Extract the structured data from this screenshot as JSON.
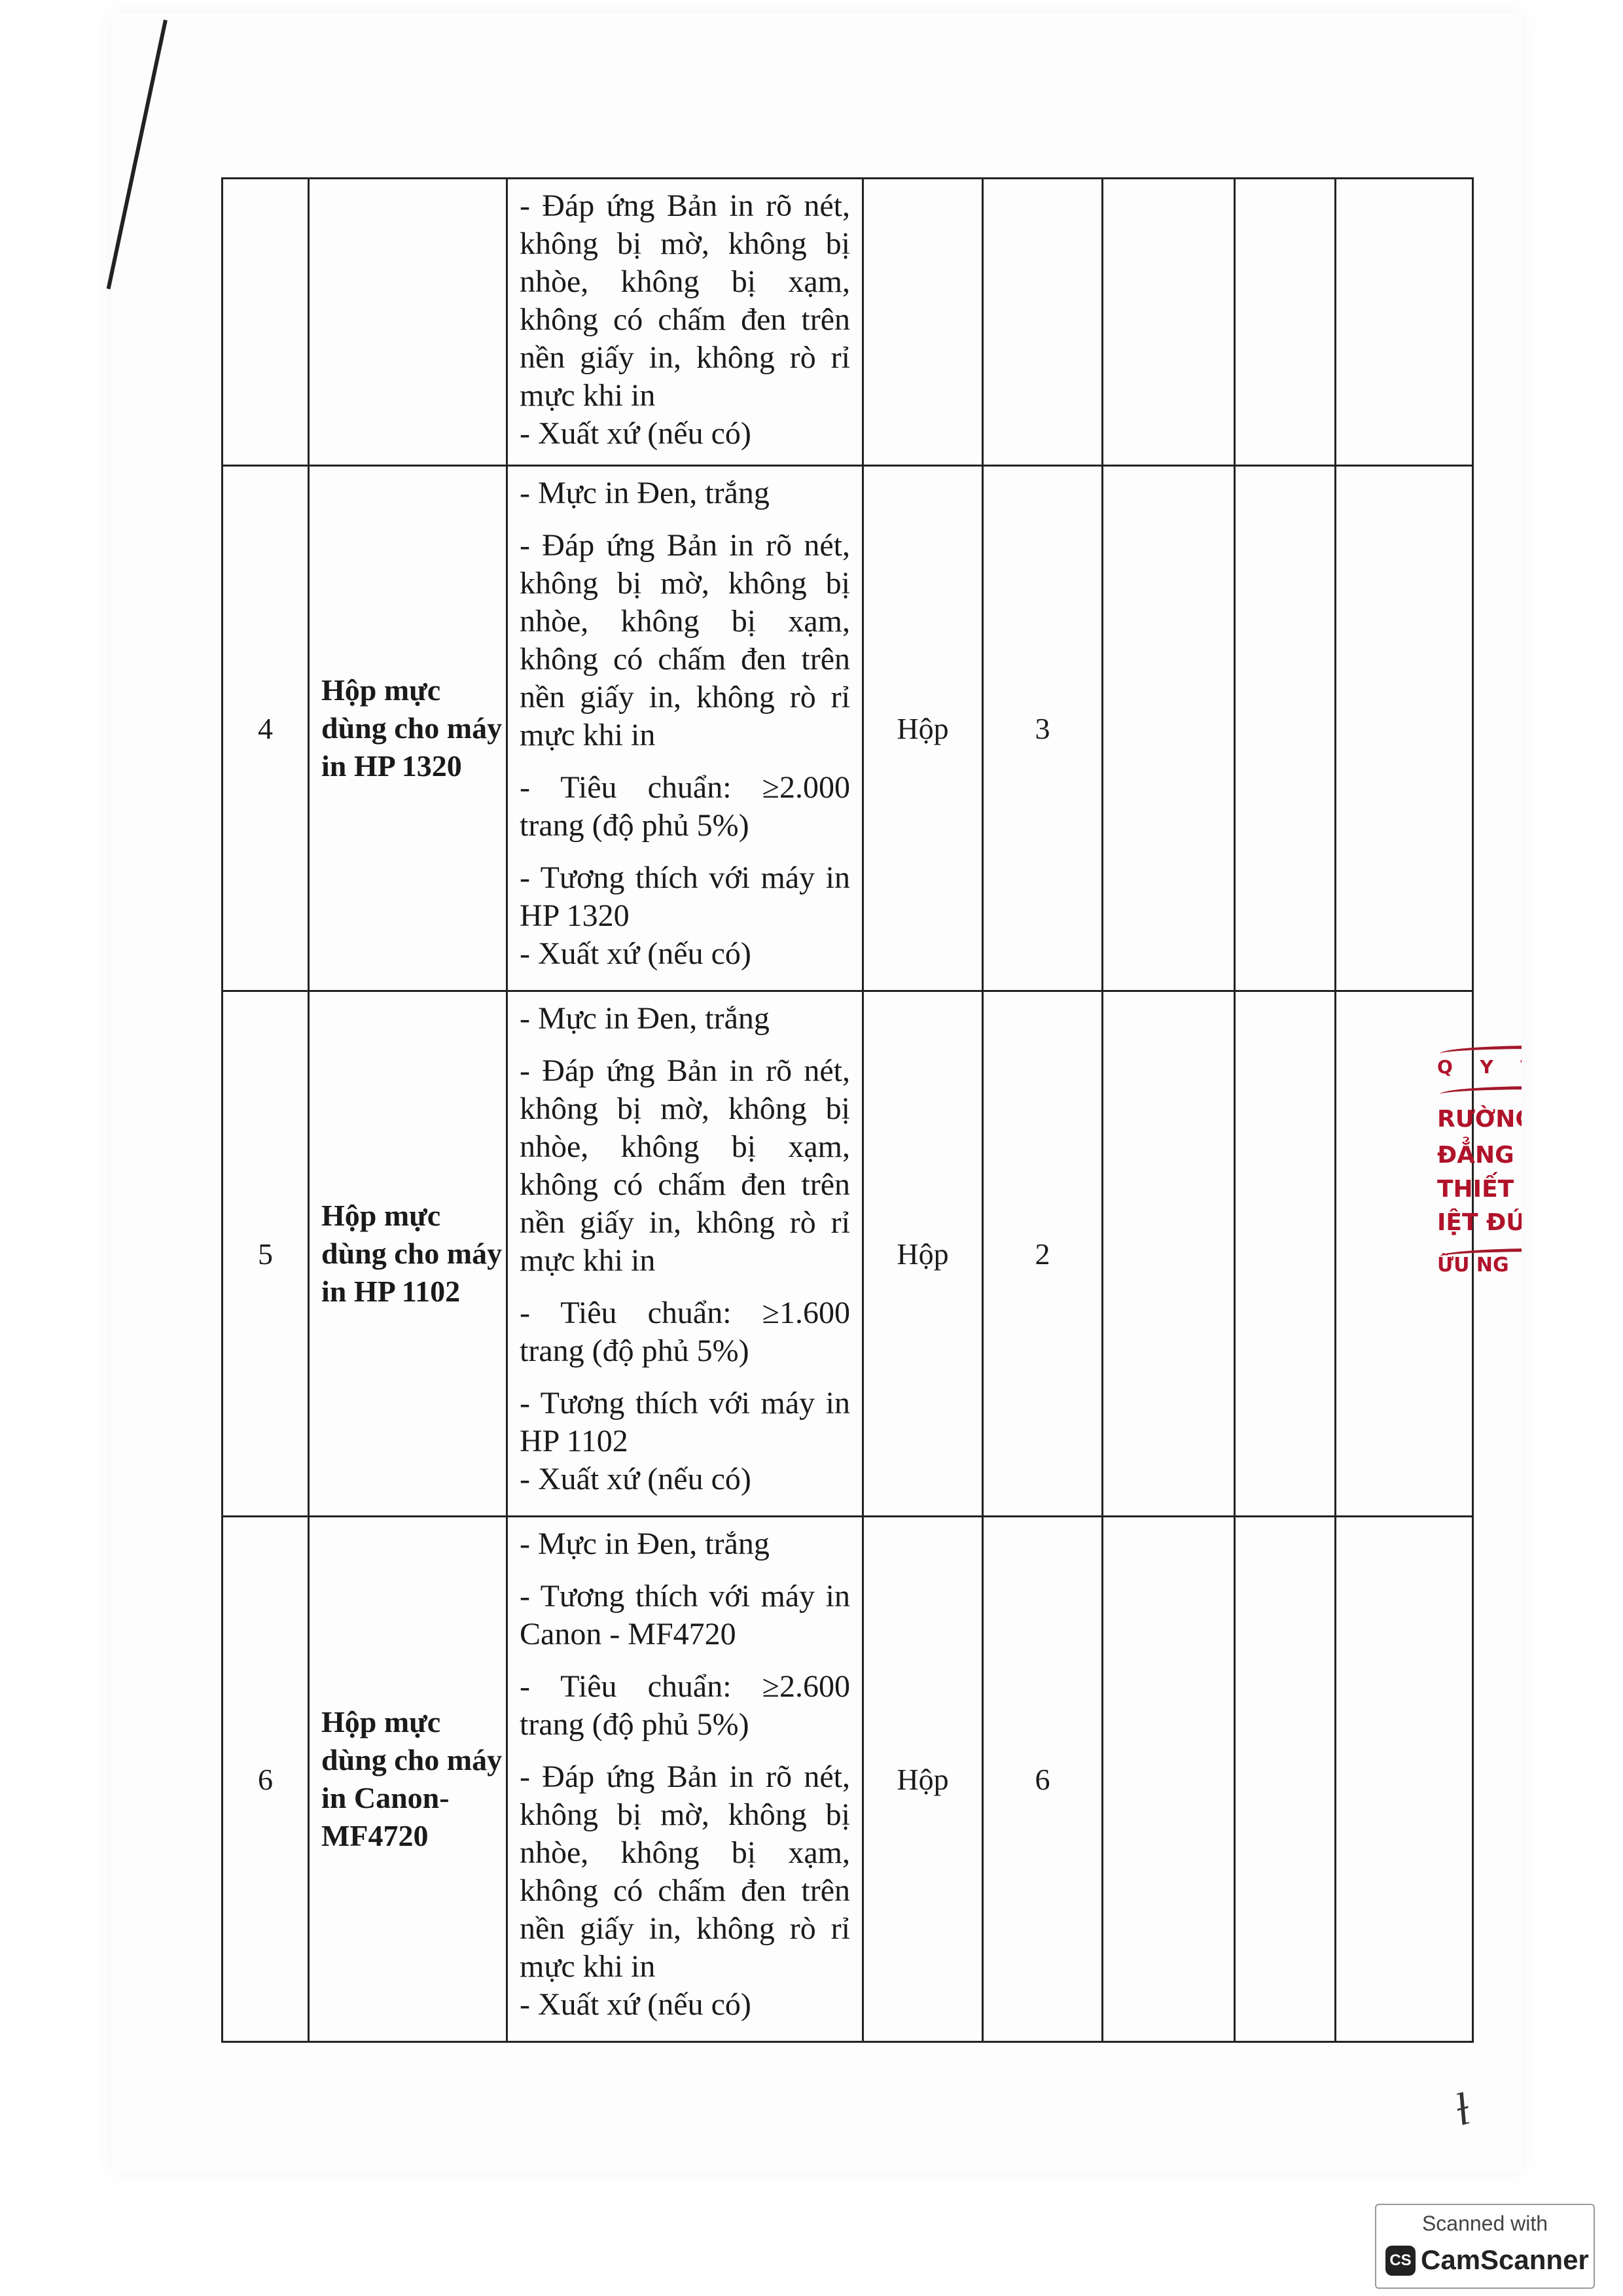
{
  "table": {
    "rows": [
      {
        "stt": "",
        "name": "",
        "desc": [
          "- Đáp ứng Bản in rõ nét, không bị mờ, không bị nhòe, không bị xạm, không có chấm đen trên nền giấy in, không rò rỉ mực khi in\n- Xuất xứ (nếu có)"
        ],
        "unit": "",
        "qty": ""
      },
      {
        "stt": "4",
        "name": "Hộp mực dùng cho máy in HP 1320",
        "desc": [
          "- Mực in Đen, trắng",
          "- Đáp ứng Bản in rõ nét, không bị mờ, không bị nhòe, không bị xạm, không có chấm đen trên nền giấy in, không rò rỉ mực khi in",
          "- Tiêu chuẩn: ≥2.000 trang (độ phủ 5%)",
          "- Tương thích với máy in HP 1320\n- Xuất xứ (nếu có)"
        ],
        "unit": "Hộp",
        "qty": "3"
      },
      {
        "stt": "5",
        "name": "Hộp mực dùng cho máy in HP 1102",
        "desc": [
          "- Mực in Đen, trắng",
          "- Đáp ứng Bản in rõ nét, không bị mờ, không bị nhòe, không bị xạm, không có chấm đen trên nền giấy in, không rò rỉ mực khi in",
          "- Tiêu chuẩn: ≥1.600 trang (độ phủ 5%)",
          "- Tương thích với máy in HP 1102\n- Xuất xứ (nếu có)"
        ],
        "unit": "Hộp",
        "qty": "2"
      },
      {
        "stt": "6",
        "name": "Hộp mực dùng cho máy in Canon-MF4720",
        "desc": [
          "- Mực in Đen, trắng",
          "- Tương thích với máy in Canon - MF4720",
          "- Tiêu chuẩn: ≥2.600 trang (độ phủ 5%)",
          "- Đáp ứng Bản in rõ nét, không bị mờ, không bị nhòe, không bị xạm, không có chấm đen trên nền giấy in, không rò rỉ mực khi in\n- Xuất xứ (nếu có)"
        ],
        "unit": "Hộp",
        "qty": "6"
      }
    ]
  },
  "stamp": {
    "lines": [
      "Q Y T",
      "RƯỜNG",
      "ĐẲNG Y",
      "THIẾT",
      "IỆT ĐỨ",
      "ỮU NG"
    ],
    "color": "#b0132a"
  },
  "watermark": {
    "line1": "Scanned with",
    "logo": "CS",
    "line2": "CamScanner"
  }
}
